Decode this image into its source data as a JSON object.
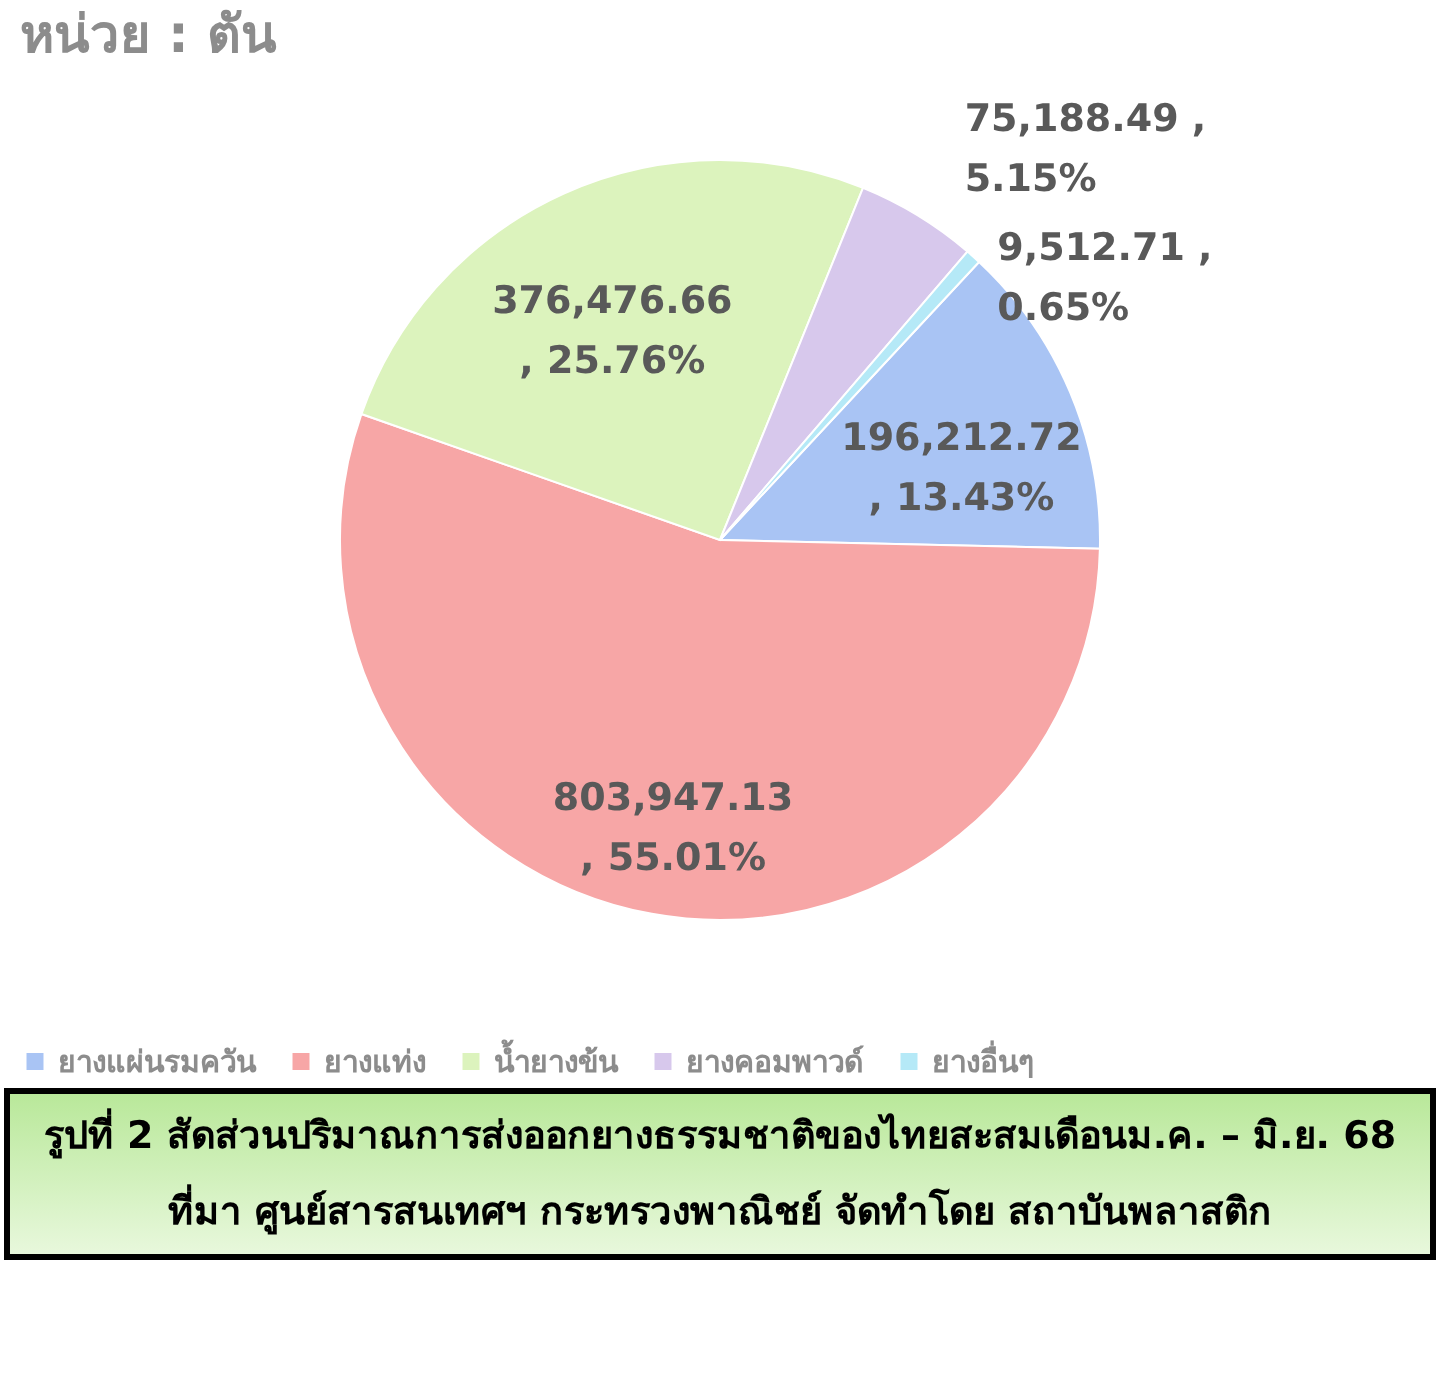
{
  "chart_data": {
    "type": "pie",
    "title": "หน่วย : ตัน",
    "categories": [
      "ยางแผ่นรมควัน",
      "ยางแท่ง",
      "น้ำยางข้น",
      "ยางคอมพาวด์",
      "ยางอื่นๆ"
    ],
    "values": [
      196212.72,
      803947.13,
      376476.66,
      75188.49,
      9512.71
    ],
    "value_labels": [
      "196,212.72\n, 13.43%",
      "803,947.13\n, 55.01%",
      "376,476.66\n, 25.76%",
      "75,188.49 ,\n5.15%",
      "9,512.71 ,\n0.65%"
    ],
    "colors": [
      "#a9c4f4",
      "#f7a6a6",
      "#dcf3bd",
      "#d7c8ec",
      "#b5e9f7"
    ],
    "legend": "bottom",
    "annotations": [
      "รูปที่ 2 สัดส่วนปริมาณการส่งออกยางธรรมชาติของไทยสะสมเดือนม.ค. – มิ.ย. 68",
      "ที่มา ศูนย์สารสนเทศฯ กระทรวงพาณิชย์ จัดทำโดย สถาบันพลาสติก"
    ]
  }
}
